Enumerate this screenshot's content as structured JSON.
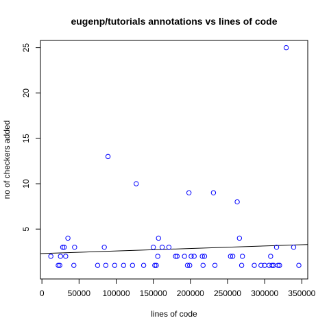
{
  "chart_data": {
    "type": "scatter",
    "title": "eugenp/tutorials annotations vs lines of code",
    "xlabel": "lines of code",
    "ylabel": "no of checkers added",
    "xlim": [
      -2000,
      358000
    ],
    "ylim": [
      -0.5,
      25.8
    ],
    "x_ticks": [
      0,
      50000,
      100000,
      150000,
      200000,
      250000,
      300000,
      350000
    ],
    "x_tick_labels": [
      "0",
      "50000",
      "100000",
      "150000",
      "200000",
      "250000",
      "300000",
      "350000"
    ],
    "y_ticks": [
      5,
      10,
      15,
      20,
      25
    ],
    "y_tick_labels": [
      "5",
      "10",
      "15",
      "20",
      "25"
    ],
    "point_color": "#0000ff",
    "line_color": "#000000",
    "regression_line": {
      "x": [
        -2000,
        358000
      ],
      "y": [
        2.3,
        3.3
      ]
    },
    "points": [
      {
        "x": 12000,
        "y": 2
      },
      {
        "x": 22000,
        "y": 1
      },
      {
        "x": 24000,
        "y": 1
      },
      {
        "x": 25000,
        "y": 2
      },
      {
        "x": 28000,
        "y": 3
      },
      {
        "x": 30000,
        "y": 3
      },
      {
        "x": 32000,
        "y": 2
      },
      {
        "x": 35000,
        "y": 4
      },
      {
        "x": 43000,
        "y": 1
      },
      {
        "x": 44000,
        "y": 3
      },
      {
        "x": 75000,
        "y": 1
      },
      {
        "x": 84000,
        "y": 3
      },
      {
        "x": 86000,
        "y": 1
      },
      {
        "x": 89000,
        "y": 13
      },
      {
        "x": 98000,
        "y": 1
      },
      {
        "x": 110000,
        "y": 1
      },
      {
        "x": 122000,
        "y": 1
      },
      {
        "x": 127000,
        "y": 10
      },
      {
        "x": 137000,
        "y": 1
      },
      {
        "x": 150000,
        "y": 3
      },
      {
        "x": 152000,
        "y": 1
      },
      {
        "x": 154000,
        "y": 1
      },
      {
        "x": 156000,
        "y": 2
      },
      {
        "x": 157000,
        "y": 4
      },
      {
        "x": 162000,
        "y": 3
      },
      {
        "x": 171000,
        "y": 3
      },
      {
        "x": 180000,
        "y": 2
      },
      {
        "x": 182000,
        "y": 2
      },
      {
        "x": 192000,
        "y": 2
      },
      {
        "x": 196000,
        "y": 1
      },
      {
        "x": 198000,
        "y": 9
      },
      {
        "x": 199000,
        "y": 1
      },
      {
        "x": 201000,
        "y": 2
      },
      {
        "x": 205000,
        "y": 2
      },
      {
        "x": 216000,
        "y": 2
      },
      {
        "x": 217000,
        "y": 1
      },
      {
        "x": 219000,
        "y": 2
      },
      {
        "x": 231000,
        "y": 9
      },
      {
        "x": 233000,
        "y": 1
      },
      {
        "x": 254000,
        "y": 2
      },
      {
        "x": 257000,
        "y": 2
      },
      {
        "x": 263000,
        "y": 8
      },
      {
        "x": 266000,
        "y": 4
      },
      {
        "x": 269000,
        "y": 1
      },
      {
        "x": 270000,
        "y": 2
      },
      {
        "x": 286000,
        "y": 1
      },
      {
        "x": 295000,
        "y": 1
      },
      {
        "x": 300000,
        "y": 1
      },
      {
        "x": 306000,
        "y": 1
      },
      {
        "x": 308000,
        "y": 2
      },
      {
        "x": 310000,
        "y": 1
      },
      {
        "x": 312000,
        "y": 1
      },
      {
        "x": 316000,
        "y": 3
      },
      {
        "x": 318000,
        "y": 1
      },
      {
        "x": 320000,
        "y": 1
      },
      {
        "x": 329000,
        "y": 25
      },
      {
        "x": 339000,
        "y": 3
      },
      {
        "x": 346000,
        "y": 1
      }
    ]
  }
}
